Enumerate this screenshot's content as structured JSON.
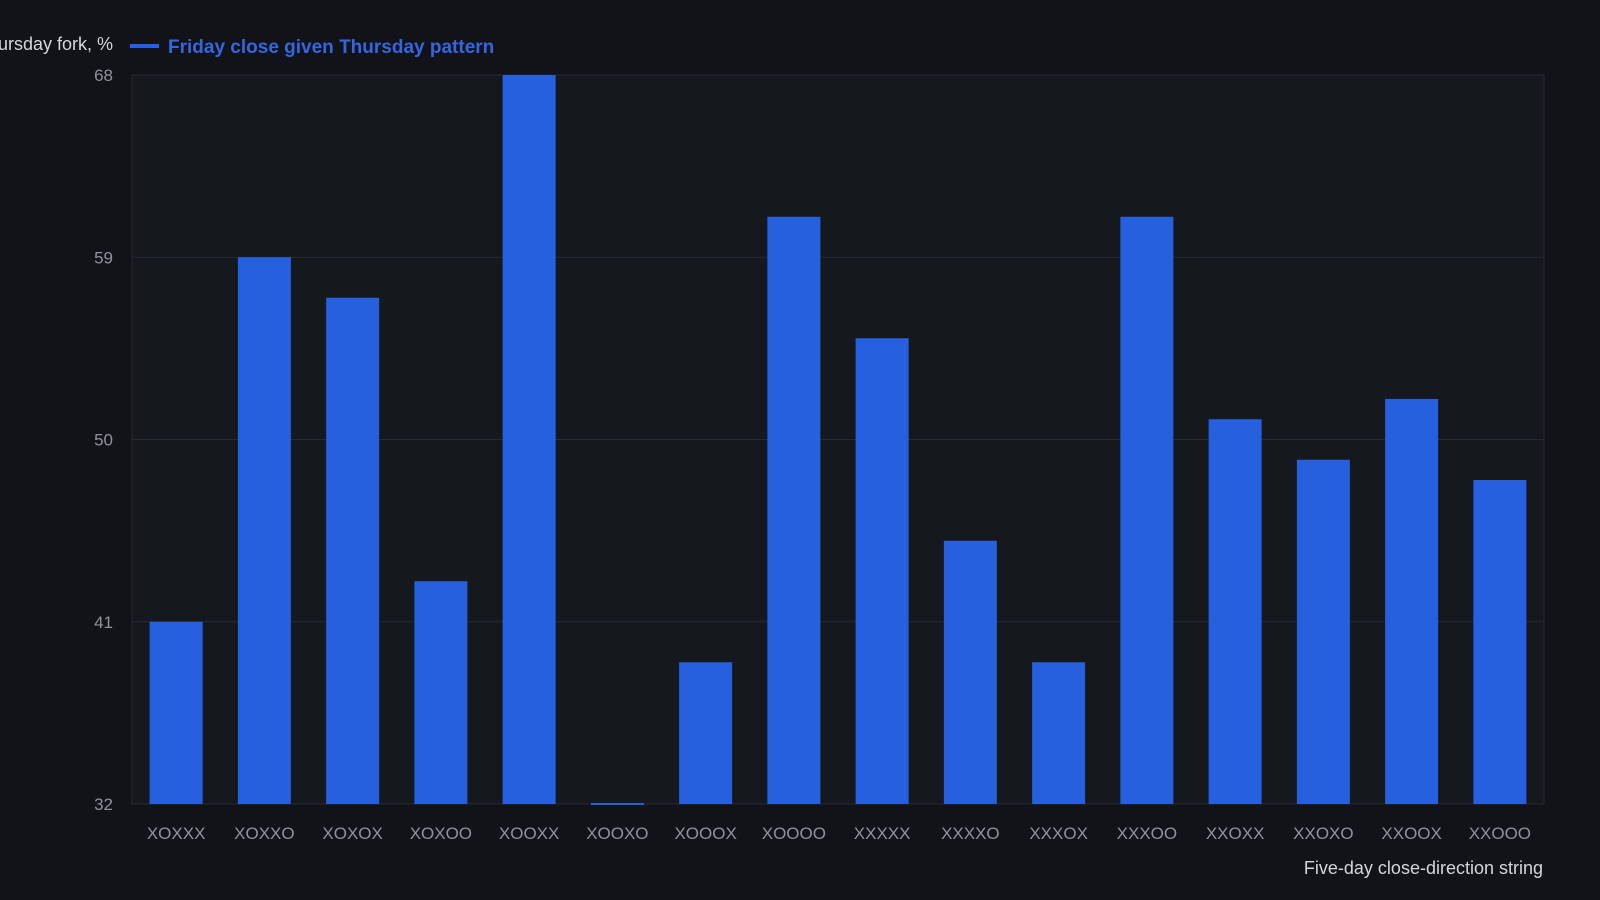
{
  "chart_data": {
    "type": "bar",
    "ylabel": "...ursday fork, %",
    "xlabel": "Five-day close-direction string",
    "ylim": [
      32,
      68
    ],
    "yticks": [
      32,
      41,
      50,
      59,
      68
    ],
    "grid": true,
    "legend_position": "top-left",
    "categories": [
      "XOXXX",
      "XOXXO",
      "XOXOX",
      "XOXOO",
      "XOOXX",
      "XOOXO",
      "XOOOX",
      "XOOOO",
      "XXXXX",
      "XXXXO",
      "XXXOX",
      "XXXOO",
      "XXOXX",
      "XXOXO",
      "XXOOX",
      "XXOOO"
    ],
    "series": [
      {
        "name": "Friday close given Thursday pattern",
        "color": "#2660de",
        "values": [
          41,
          59,
          57,
          43,
          68,
          32,
          39,
          61,
          55,
          45,
          39,
          61,
          51,
          49,
          52,
          48
        ]
      }
    ]
  },
  "colors": {
    "background": "#111318",
    "plot_background": "#15181d",
    "grid": "#262a31",
    "bar": "#2660de",
    "legend_text": "#3466e0",
    "tick_text": "#8f9299",
    "label_text": "#d4d6da"
  }
}
